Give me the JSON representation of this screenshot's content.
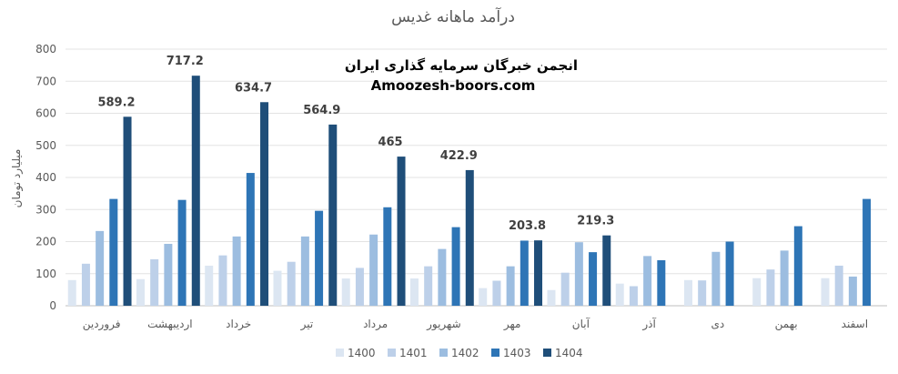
{
  "chart_data": {
    "type": "bar",
    "title": "درآمد ماهانه غدیس",
    "ylabel": "میلیارد تومان",
    "xlabel": "",
    "ylim": [
      0,
      800
    ],
    "yticks": [
      0,
      100,
      200,
      300,
      400,
      500,
      600,
      700,
      800
    ],
    "grid": true,
    "legend_position": "bottom",
    "categories": [
      "فروردین",
      "اردیبهشت",
      "خرداد",
      "تیر",
      "مرداد",
      "شهریور",
      "مهر",
      "آبان",
      "آذر",
      "دی",
      "بهمن",
      "اسفند"
    ],
    "series": [
      {
        "name": "1400",
        "color": "#dce6f2",
        "values": [
          80,
          83,
          125,
          109,
          85,
          85,
          55,
          49,
          69,
          80,
          86,
          86
        ]
      },
      {
        "name": "1401",
        "color": "#bdd0e9",
        "values": [
          131,
          145,
          157,
          137,
          118,
          123,
          78,
          103,
          61,
          79,
          113,
          125
        ]
      },
      {
        "name": "1402",
        "color": "#9cbde0",
        "values": [
          233,
          193,
          216,
          216,
          222,
          177,
          123,
          198,
          155,
          168,
          172,
          91
        ]
      },
      {
        "name": "1403",
        "color": "#2e75b6",
        "values": [
          333,
          330,
          414,
          296,
          307,
          245,
          203,
          167,
          142,
          200,
          248,
          333
        ]
      },
      {
        "name": "1404",
        "color": "#1f4e79",
        "values": [
          589.2,
          717.2,
          634.7,
          564.9,
          465,
          422.9,
          203.8,
          219.3,
          null,
          null,
          null,
          null
        ]
      }
    ],
    "data_labels": {
      "series": "1404",
      "texts": [
        "589.2",
        "717.2",
        "634.7",
        "564.9",
        "465",
        "422.9",
        "203.8",
        "219.3"
      ]
    }
  },
  "watermark": {
    "line1": "انجمن خبرگان سرمایه گذاری ایران",
    "line2": "Amoozesh-boors.com"
  }
}
